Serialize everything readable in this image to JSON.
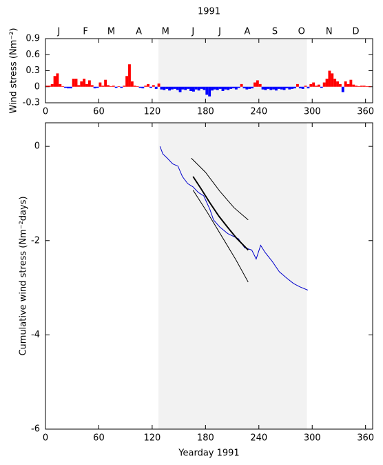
{
  "chart_data": [
    {
      "type": "bar",
      "title": "1991",
      "ylabel": "Wind stress (Nm⁻²)",
      "xlim": [
        0,
        368
      ],
      "xticks": [
        0,
        60,
        120,
        180,
        240,
        300,
        360
      ],
      "x2ticks": [
        {
          "value": 15,
          "label": "J"
        },
        {
          "value": 45,
          "label": "F"
        },
        {
          "value": 74,
          "label": "M"
        },
        {
          "value": 105,
          "label": "A"
        },
        {
          "value": 135,
          "label": "M"
        },
        {
          "value": 166,
          "label": "J"
        },
        {
          "value": 196,
          "label": "J"
        },
        {
          "value": 227,
          "label": "A"
        },
        {
          "value": 258,
          "label": "S"
        },
        {
          "value": 288,
          "label": "O"
        },
        {
          "value": 319,
          "label": "N"
        },
        {
          "value": 349,
          "label": "D"
        }
      ],
      "ylim": [
        -0.3,
        0.9
      ],
      "yticks": [
        -0.3,
        0,
        0.3,
        0.6,
        0.9
      ],
      "shade": [
        127,
        294
      ],
      "positive_color": "#ff0000",
      "negative_color": "#0000ff",
      "x": [
        0,
        3,
        6,
        9,
        12,
        15,
        18,
        21,
        24,
        27,
        30,
        33,
        36,
        39,
        42,
        45,
        48,
        51,
        54,
        57,
        60,
        63,
        66,
        69,
        72,
        75,
        78,
        81,
        84,
        87,
        90,
        93,
        96,
        99,
        102,
        105,
        108,
        111,
        114,
        117,
        120,
        123,
        126,
        129,
        132,
        135,
        138,
        141,
        144,
        147,
        150,
        153,
        156,
        159,
        162,
        165,
        168,
        171,
        174,
        177,
        180,
        183,
        186,
        189,
        192,
        195,
        198,
        201,
        204,
        207,
        210,
        213,
        216,
        219,
        222,
        225,
        228,
        231,
        234,
        237,
        240,
        243,
        246,
        249,
        252,
        255,
        258,
        261,
        264,
        267,
        270,
        273,
        276,
        279,
        282,
        285,
        288,
        291,
        294,
        297,
        300,
        303,
        306,
        309,
        312,
        315,
        318,
        321,
        324,
        327,
        330,
        333,
        336,
        339,
        342,
        345,
        348,
        351,
        354,
        357,
        360,
        363
      ],
      "values": [
        0.02,
        0.02,
        0.05,
        0.2,
        0.25,
        0.05,
        0.01,
        -0.02,
        -0.03,
        -0.03,
        0.15,
        0.15,
        0.03,
        0.1,
        0.15,
        0.05,
        0.12,
        0.03,
        -0.03,
        -0.02,
        0.08,
        0.02,
        0.13,
        0.03,
        0.01,
        0.02,
        -0.02,
        0.01,
        -0.02,
        0.02,
        0.2,
        0.42,
        0.1,
        0.02,
        0.01,
        -0.02,
        -0.03,
        0.02,
        0.05,
        -0.02,
        0.03,
        -0.04,
        0.06,
        -0.05,
        -0.06,
        -0.04,
        -0.07,
        -0.05,
        -0.04,
        -0.06,
        -0.1,
        -0.05,
        -0.06,
        -0.04,
        -0.08,
        -0.09,
        -0.05,
        -0.07,
        -0.04,
        -0.06,
        -0.15,
        -0.18,
        -0.07,
        -0.05,
        -0.06,
        -0.04,
        -0.08,
        -0.05,
        -0.06,
        -0.04,
        -0.03,
        -0.05,
        -0.02,
        0.05,
        -0.03,
        -0.05,
        -0.04,
        -0.03,
        0.08,
        0.12,
        0.05,
        -0.05,
        -0.06,
        -0.04,
        -0.06,
        -0.05,
        -0.07,
        -0.04,
        -0.05,
        -0.06,
        -0.03,
        -0.05,
        -0.04,
        -0.03,
        0.05,
        -0.03,
        -0.04,
        0.02,
        -0.03,
        0.05,
        0.08,
        0.02,
        0.04,
        -0.02,
        0.08,
        0.15,
        0.3,
        0.25,
        0.15,
        0.1,
        0.05,
        -0.1,
        0.1,
        0.05,
        0.13,
        0.04,
        0.02,
        0.01,
        0.02,
        0.02,
        0.01,
        0.01
      ]
    },
    {
      "type": "line",
      "xlabel": "Yearday 1991",
      "ylabel": "Cumulative wind stress (Nm⁻²days)",
      "xlim": [
        0,
        368
      ],
      "xticks": [
        0,
        60,
        120,
        180,
        240,
        300,
        360
      ],
      "ylim": [
        -6,
        0.5
      ],
      "yticks": [
        -6,
        -4,
        -2,
        0
      ],
      "shade": [
        127,
        294
      ],
      "series": [
        {
          "color": "#0000cc",
          "width": 1,
          "x": [
            128.8,
            132,
            137,
            143,
            149,
            154,
            160,
            166,
            172,
            178,
            185,
            189,
            196,
            205,
            217,
            224,
            232,
            237,
            242,
            247,
            255,
            263,
            271,
            279,
            286,
            295
          ],
          "values": [
            0,
            -0.16,
            -0.25,
            -0.37,
            -0.42,
            -0.64,
            -0.79,
            -0.86,
            -0.98,
            -1.05,
            -1.34,
            -1.56,
            -1.71,
            -1.85,
            -1.96,
            -2.15,
            -2.2,
            -2.39,
            -2.1,
            -2.25,
            -2.44,
            -2.66,
            -2.79,
            -2.91,
            -2.98,
            -3.05
          ]
        },
        {
          "color": "#000000",
          "width": 2,
          "x": [
            166,
            175,
            185,
            195,
            205,
            215,
            228
          ],
          "values": [
            -0.64,
            -0.9,
            -1.2,
            -1.48,
            -1.72,
            -1.95,
            -2.2
          ]
        },
        {
          "color": "#000000",
          "width": 1,
          "x": [
            164,
            180,
            196,
            212,
            228
          ],
          "values": [
            -0.25,
            -0.55,
            -0.95,
            -1.3,
            -1.56
          ]
        },
        {
          "color": "#000000",
          "width": 1,
          "x": [
            166,
            182,
            198,
            214,
            228
          ],
          "values": [
            -0.93,
            -1.4,
            -1.9,
            -2.4,
            -2.88
          ]
        }
      ]
    }
  ]
}
